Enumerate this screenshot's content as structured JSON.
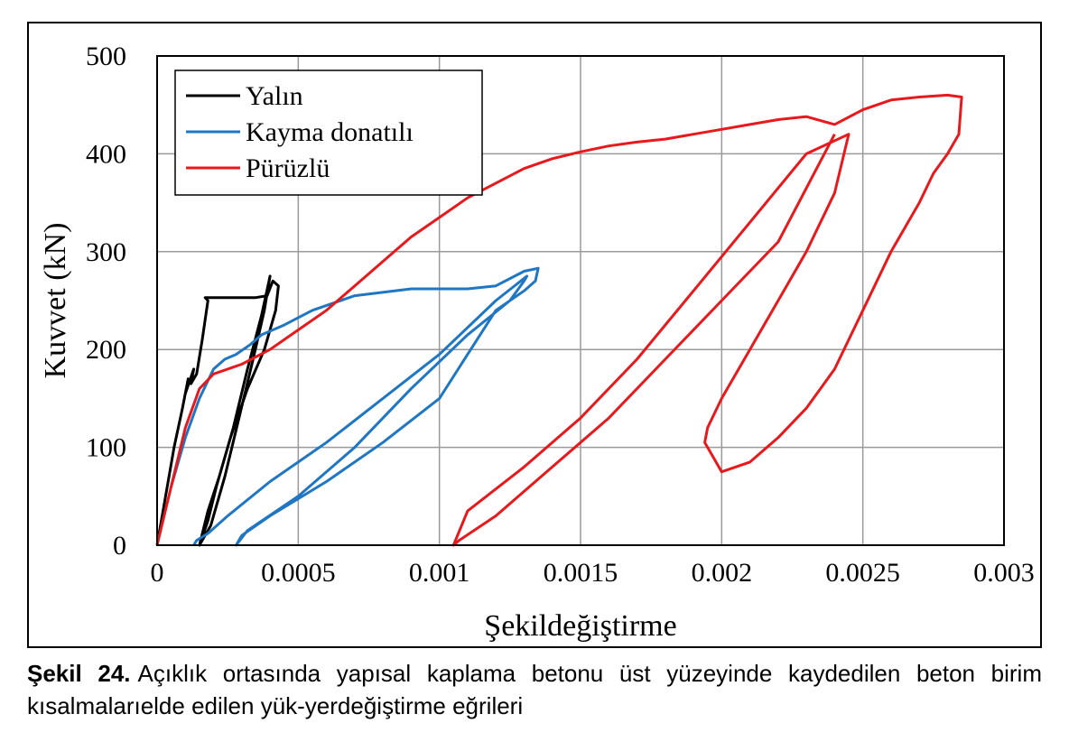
{
  "caption": {
    "label": "Şekil 24.",
    "text": "Açıklık ortasında yapısal kaplama betonu üst yüzeyinde kaydedilen beton birim kısalmalarıelde edilen yük-yerdeğiştirme eğrileri"
  },
  "chart_data": {
    "type": "line",
    "xlabel": "Şekildeğiştirme",
    "ylabel": "Kuvvet (kN)",
    "xlim": [
      0,
      0.003
    ],
    "ylim": [
      0,
      500
    ],
    "xticks": [
      0,
      0.0005,
      0.001,
      0.0015,
      0.002,
      0.0025,
      0.003
    ],
    "xtick_labels": [
      "0",
      "0.0005",
      "0.001",
      "0.0015",
      "0.002",
      "0.0025",
      "0.003"
    ],
    "yticks": [
      0,
      100,
      200,
      300,
      400,
      500
    ],
    "ytick_labels": [
      "0",
      "100",
      "200",
      "300",
      "400",
      "500"
    ],
    "grid": true,
    "legend_position": "top-left",
    "series": [
      {
        "name": "Yalın",
        "color": "#000000",
        "x": [
          0,
          3e-05,
          6e-05,
          9e-05,
          0.00011,
          0.0001,
          0.00013,
          0.00012,
          0.00014,
          0.00016,
          0.00018,
          0.00017,
          0.0002,
          0.00025,
          0.0003,
          0.00035,
          0.00039,
          0.00041,
          0.00043,
          0.00042,
          0.00038,
          0.00032,
          0.00026,
          0.00021,
          0.00018,
          0.00016,
          0.00015,
          0.00019,
          0.00024,
          0.00029,
          0.00034,
          0.00038,
          0.0004,
          0.00037,
          0.00032,
          0.00027,
          0.00022,
          0.00018,
          0.00015
        ],
        "y": [
          0,
          50,
          100,
          140,
          170,
          155,
          180,
          165,
          175,
          210,
          250,
          253,
          253,
          253,
          253,
          253,
          255,
          270,
          265,
          240,
          200,
          160,
          110,
          60,
          25,
          8,
          0,
          20,
          70,
          130,
          190,
          240,
          275,
          235,
          180,
          120,
          70,
          35,
          0
        ]
      },
      {
        "name": "Kayma donatılı",
        "color": "#1f77c4",
        "x": [
          5e-05,
          0.0001,
          0.00015,
          0.0002,
          0.00024,
          0.00028,
          0.00033,
          0.00037,
          0.00045,
          0.00055,
          0.0007,
          0.0009,
          0.0011,
          0.0012,
          0.0013,
          0.00135,
          0.00134,
          0.0013,
          0.0012,
          0.0011,
          0.001,
          0.0008,
          0.0006,
          0.0004,
          0.0003,
          0.00028,
          0.00032,
          0.0005,
          0.0007,
          0.0009,
          0.0011,
          0.00125,
          0.0013,
          0.00131,
          0.0012,
          0.001,
          0.0008,
          0.0006,
          0.0004,
          0.00025,
          0.00018,
          0.00014,
          0.00013
        ],
        "y": [
          60,
          110,
          150,
          180,
          190,
          195,
          205,
          215,
          225,
          240,
          255,
          262,
          262,
          265,
          280,
          283,
          270,
          260,
          240,
          195,
          150,
          105,
          65,
          30,
          10,
          0,
          15,
          50,
          100,
          160,
          215,
          250,
          270,
          275,
          250,
          195,
          150,
          105,
          65,
          30,
          12,
          5,
          0
        ]
      },
      {
        "name": "Pürüzlü",
        "color": "#e8191c",
        "x": [
          0,
          5e-05,
          0.0001,
          0.00015,
          0.0002,
          0.0003,
          0.0004,
          0.0005,
          0.0006,
          0.0007,
          0.0008,
          0.0009,
          0.001,
          0.0011,
          0.0012,
          0.0013,
          0.0014,
          0.0015,
          0.0016,
          0.0017,
          0.0018,
          0.0019,
          0.002,
          0.0021,
          0.0022,
          0.0023,
          0.0024,
          0.0025,
          0.0026,
          0.0027,
          0.0028,
          0.00285,
          0.00284,
          0.0028,
          0.00275,
          0.0027,
          0.0026,
          0.0025,
          0.0024,
          0.0023,
          0.0022,
          0.0021,
          0.002,
          0.00195,
          0.00194,
          0.00195,
          0.002,
          0.0021,
          0.0022,
          0.0023,
          0.0024,
          0.00245,
          0.0023,
          0.0021,
          0.0019,
          0.0017,
          0.0015,
          0.0013,
          0.0011,
          0.00105,
          0.00107,
          0.0012,
          0.0014,
          0.0016,
          0.0018,
          0.002,
          0.0022,
          0.0024
        ],
        "y": [
          0,
          60,
          120,
          160,
          175,
          185,
          200,
          220,
          240,
          265,
          290,
          315,
          335,
          355,
          370,
          385,
          395,
          402,
          408,
          412,
          415,
          420,
          425,
          430,
          435,
          438,
          430,
          445,
          455,
          458,
          460,
          458,
          420,
          400,
          380,
          350,
          300,
          240,
          180,
          140,
          110,
          85,
          75,
          100,
          105,
          120,
          150,
          200,
          250,
          300,
          360,
          420,
          400,
          330,
          260,
          190,
          130,
          80,
          35,
          0,
          5,
          30,
          80,
          130,
          190,
          250,
          310,
          420
        ]
      }
    ]
  }
}
